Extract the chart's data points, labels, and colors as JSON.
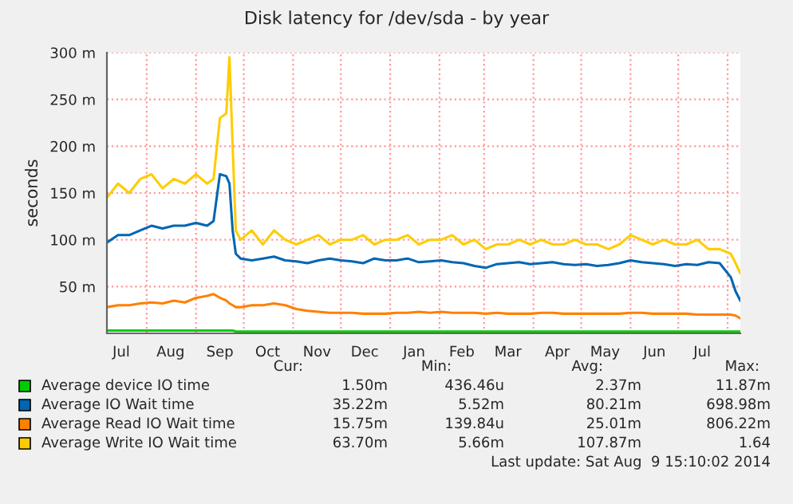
{
  "chart_data": {
    "type": "line",
    "title": "Disk latency for /dev/sda - by year",
    "ylabel": "seconds",
    "x": [
      "2013-07-07",
      "2013-07-14",
      "2013-07-21",
      "2013-07-28",
      "2013-08-04",
      "2013-08-11",
      "2013-08-18",
      "2013-08-25",
      "2013-09-01",
      "2013-09-08",
      "2013-09-12",
      "2013-09-16",
      "2013-09-20",
      "2013-09-22",
      "2013-09-24",
      "2013-09-26",
      "2013-09-29",
      "2013-10-06",
      "2013-10-13",
      "2013-10-20",
      "2013-10-27",
      "2013-11-03",
      "2013-11-10",
      "2013-11-17",
      "2013-11-24",
      "2013-12-01",
      "2013-12-08",
      "2013-12-15",
      "2013-12-22",
      "2013-12-29",
      "2014-01-05",
      "2014-01-12",
      "2014-01-19",
      "2014-01-26",
      "2014-02-02",
      "2014-02-09",
      "2014-02-16",
      "2014-02-23",
      "2014-03-02",
      "2014-03-09",
      "2014-03-16",
      "2014-03-23",
      "2014-03-30",
      "2014-04-06",
      "2014-04-13",
      "2014-04-20",
      "2014-04-27",
      "2014-05-04",
      "2014-05-11",
      "2014-05-18",
      "2014-05-25",
      "2014-06-01",
      "2014-06-08",
      "2014-06-15",
      "2014-06-22",
      "2014-06-29",
      "2014-07-06",
      "2014-07-13",
      "2014-07-20",
      "2014-07-27",
      "2014-08-03",
      "2014-08-06",
      "2014-08-09"
    ],
    "series": [
      {
        "name": "Average device IO time",
        "color": "#00cc00",
        "values": [
          3,
          3,
          3,
          3,
          3,
          3,
          3,
          3,
          3,
          3,
          3,
          3,
          3,
          3,
          3,
          2,
          2,
          2,
          2,
          2,
          2,
          2,
          2,
          2,
          2,
          2,
          2,
          2,
          2,
          2,
          2,
          2,
          2,
          2,
          2,
          2,
          2,
          2,
          2,
          2,
          2,
          2,
          2,
          2,
          2,
          2,
          2,
          2,
          2,
          2,
          2,
          2,
          2,
          2,
          2,
          2,
          2,
          2,
          2,
          2,
          2,
          2,
          2
        ]
      },
      {
        "name": "Average IO Wait time",
        "color": "#0066b3",
        "values": [
          97,
          105,
          105,
          110,
          115,
          112,
          115,
          115,
          118,
          115,
          120,
          170,
          168,
          160,
          110,
          85,
          80,
          78,
          80,
          82,
          78,
          77,
          75,
          78,
          80,
          78,
          77,
          75,
          80,
          78,
          78,
          80,
          76,
          77,
          78,
          76,
          75,
          72,
          70,
          74,
          75,
          76,
          74,
          75,
          76,
          74,
          73,
          74,
          72,
          73,
          75,
          78,
          76,
          75,
          74,
          72,
          74,
          73,
          76,
          75,
          60,
          45,
          35
        ]
      },
      {
        "name": "Average Read IO Wait time",
        "color": "#ff8000",
        "values": [
          28,
          30,
          30,
          32,
          33,
          32,
          35,
          33,
          38,
          40,
          42,
          38,
          35,
          32,
          30,
          28,
          28,
          30,
          30,
          32,
          30,
          26,
          24,
          23,
          22,
          22,
          22,
          21,
          21,
          21,
          22,
          22,
          23,
          22,
          23,
          22,
          22,
          22,
          21,
          22,
          21,
          21,
          21,
          22,
          22,
          21,
          21,
          21,
          21,
          21,
          21,
          22,
          22,
          21,
          21,
          21,
          21,
          20,
          20,
          20,
          20,
          19,
          16
        ]
      },
      {
        "name": "Average Write IO Wait time",
        "color": "#ffcc00",
        "values": [
          145,
          160,
          150,
          165,
          170,
          155,
          165,
          160,
          170,
          160,
          165,
          230,
          235,
          295,
          200,
          110,
          100,
          110,
          95,
          110,
          100,
          95,
          100,
          105,
          95,
          100,
          100,
          105,
          95,
          100,
          100,
          105,
          95,
          100,
          100,
          105,
          95,
          100,
          90,
          95,
          95,
          100,
          95,
          100,
          95,
          95,
          100,
          95,
          95,
          90,
          95,
          105,
          100,
          95,
          100,
          95,
          95,
          100,
          90,
          90,
          85,
          75,
          64
        ]
      }
    ],
    "xlim": [
      "2013-07-07",
      "2014-08-09"
    ],
    "xticks": [
      {
        "value": "2013-07-16",
        "label": "Jul"
      },
      {
        "value": "2013-08-01",
        "label": null
      },
      {
        "value": "2013-08-16",
        "label": "Aug"
      },
      {
        "value": "2013-09-01",
        "label": null
      },
      {
        "value": "2013-09-16",
        "label": "Sep"
      },
      {
        "value": "2013-10-01",
        "label": null
      },
      {
        "value": "2013-10-16",
        "label": "Oct"
      },
      {
        "value": "2013-11-01",
        "label": null
      },
      {
        "value": "2013-11-16",
        "label": "Nov"
      },
      {
        "value": "2013-12-01",
        "label": null
      },
      {
        "value": "2013-12-16",
        "label": "Dec"
      },
      {
        "value": "2014-01-01",
        "label": null
      },
      {
        "value": "2014-01-16",
        "label": "Jan"
      },
      {
        "value": "2014-02-01",
        "label": null
      },
      {
        "value": "2014-02-15",
        "label": "Feb"
      },
      {
        "value": "2014-03-01",
        "label": null
      },
      {
        "value": "2014-03-16",
        "label": "Mar"
      },
      {
        "value": "2014-04-01",
        "label": null
      },
      {
        "value": "2014-04-16",
        "label": "Apr"
      },
      {
        "value": "2014-05-01",
        "label": null
      },
      {
        "value": "2014-05-16",
        "label": "May"
      },
      {
        "value": "2014-06-01",
        "label": null
      },
      {
        "value": "2014-06-16",
        "label": "Jun"
      },
      {
        "value": "2014-07-01",
        "label": null
      },
      {
        "value": "2014-07-16",
        "label": "Jul"
      },
      {
        "value": "2014-08-01",
        "label": null
      }
    ],
    "ylim": [
      0,
      300
    ],
    "yticks": [
      {
        "value": 50,
        "label": "50 m"
      },
      {
        "value": 100,
        "label": "100 m"
      },
      {
        "value": 150,
        "label": "150 m"
      },
      {
        "value": 200,
        "label": "200 m"
      },
      {
        "value": 250,
        "label": "250 m"
      },
      {
        "value": 300,
        "label": "300 m"
      }
    ],
    "grid": true,
    "legend": "bottom",
    "annotations": [
      "Cur:",
      "Min:",
      "Avg:",
      "Max:",
      "1.50m",
      "436.46u",
      "2.37m",
      "11.87m",
      "35.22m",
      "5.52m",
      "80.21m",
      "698.98m",
      "15.75m",
      "139.84u",
      "25.01m",
      "806.22m",
      "63.70m",
      "5.66m",
      "107.87m",
      "1.64",
      "Last update: Sat Aug  9 15:10:02 2014"
    ]
  }
}
